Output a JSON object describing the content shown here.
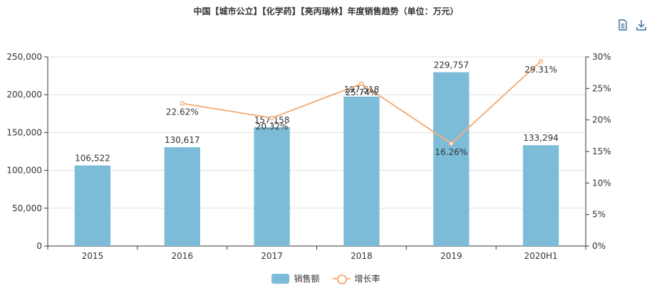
{
  "title": "中国【城市公立】【化学药】【亮丙瑞林】年度销售趋势（单位：万元）",
  "toolbar": {
    "icons": [
      "data-view-icon",
      "download-icon"
    ]
  },
  "colors": {
    "bar": "#7dbcd9",
    "line": "#f2b07e",
    "axis": "#333333",
    "grid": "#e0e0e0"
  },
  "legend": {
    "bar_label": "销售额",
    "line_label": "增长率"
  },
  "chart_data": {
    "type": "bar",
    "categories": [
      "2015",
      "2016",
      "2017",
      "2018",
      "2019",
      "2020H1"
    ],
    "series": [
      {
        "name": "销售额",
        "type": "bar",
        "axis": "left",
        "values": [
          106522,
          130617,
          157158,
          197518,
          229757,
          133294
        ],
        "labels": [
          "106,522",
          "130,617",
          "157,158",
          "197,518",
          "229,757",
          "133,294"
        ]
      },
      {
        "name": "增长率",
        "type": "line",
        "axis": "right",
        "values": [
          null,
          22.62,
          20.32,
          25.74,
          16.26,
          29.31
        ],
        "labels": [
          "",
          "22.62%",
          "20.32%",
          "25.74%",
          "16.26%",
          "29.31%"
        ]
      }
    ],
    "y_left": {
      "min": 0,
      "max": 250000,
      "ticks": [
        "0",
        "50,000",
        "100,000",
        "150,000",
        "200,000",
        "250,000"
      ]
    },
    "y_right": {
      "min": 0,
      "max": 30,
      "ticks": [
        "0%",
        "5%",
        "10%",
        "15%",
        "20%",
        "25%",
        "30%"
      ]
    },
    "grid": true,
    "legend_position": "bottom"
  }
}
